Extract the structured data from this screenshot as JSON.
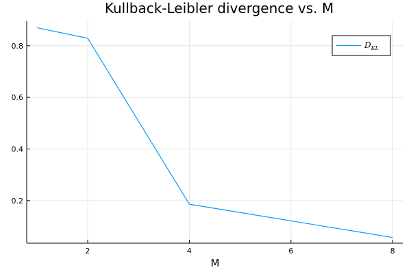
{
  "chart_data": {
    "type": "line",
    "title": "Kullback-Leibler divergence vs. M",
    "xlabel": "M",
    "ylabel": "",
    "xlim": [
      0.8,
      8.2
    ],
    "ylim": [
      0.035,
      0.895
    ],
    "xticks": [
      2,
      4,
      6,
      8
    ],
    "yticks": [
      0.2,
      0.4,
      0.6,
      0.8
    ],
    "xtick_labels": [
      "2",
      "4",
      "6",
      "8"
    ],
    "ytick_labels": [
      "0.2",
      "0.4",
      "0.6",
      "0.8"
    ],
    "grid": true,
    "legend_position": "top-right",
    "legend": {
      "symbol": "D",
      "subscript": "KL"
    },
    "series": [
      {
        "color": "#009AFA",
        "x": [
          1,
          2,
          4,
          8
        ],
        "y": [
          0.87,
          0.829,
          0.186,
          0.057
        ]
      }
    ]
  }
}
